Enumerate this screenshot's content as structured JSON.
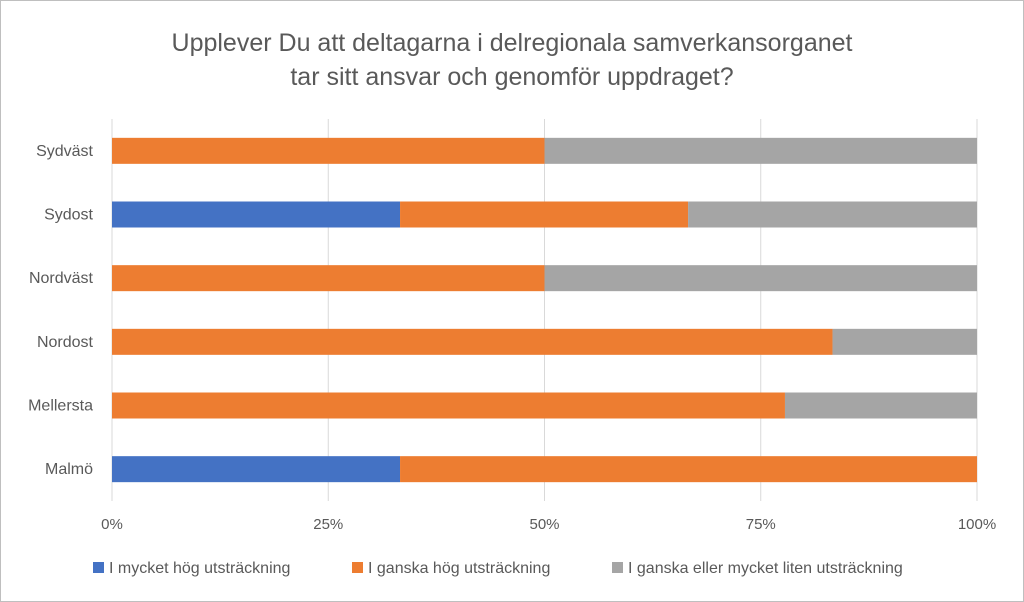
{
  "chart_data": {
    "type": "bar",
    "orientation": "horizontal",
    "stacked": "percent",
    "title_lines": [
      "Upplever Du att deltagarna i delregionala samverkansorganet",
      "tar sitt ansvar och genomför uppdraget?"
    ],
    "categories": [
      "Sydväst",
      "Sydost",
      "Nordväst",
      "Nordost",
      "Mellersta",
      "Malmö"
    ],
    "series": [
      {
        "name": "I mycket hög utsträckning",
        "color": "#4472c4",
        "values": [
          0,
          33.3,
          0,
          0,
          0,
          33.3
        ]
      },
      {
        "name": "I ganska hög utsträckning",
        "color": "#ed7d31",
        "values": [
          50,
          33.3,
          50,
          83.3,
          77.8,
          66.7
        ]
      },
      {
        "name": "I ganska eller mycket liten utsträckning",
        "color": "#a5a5a5",
        "values": [
          50,
          33.4,
          50,
          16.7,
          22.2,
          0
        ]
      }
    ],
    "xlim": [
      0,
      100
    ],
    "xticks": [
      0,
      25,
      50,
      75,
      100
    ],
    "xtick_labels": [
      "0%",
      "25%",
      "50%",
      "75%",
      "100%"
    ],
    "grid": true,
    "legend_position": "bottom"
  }
}
